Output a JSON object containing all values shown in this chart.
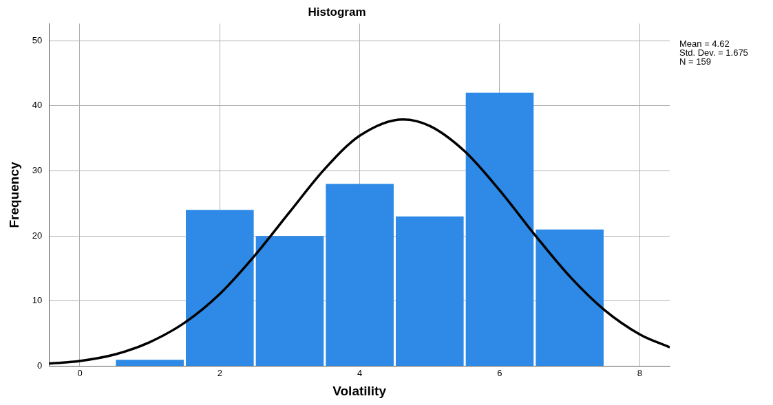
{
  "chart_data": {
    "type": "histogram",
    "title": "Histogram",
    "xlabel": "Volatility",
    "ylabel": "Frequency",
    "bins": [
      0.5,
      1.5,
      2.5,
      3.5,
      4.5,
      5.5,
      6.5,
      7.5
    ],
    "values": [
      1,
      24,
      20,
      28,
      23,
      42,
      21
    ],
    "color": "#2e8ae6",
    "series": [
      {
        "type": "line",
        "color": "#000000",
        "x": [
          -0.44,
          0,
          0.5,
          1,
          1.5,
          2,
          2.5,
          3,
          3.5,
          4,
          4.62,
          5,
          5.5,
          6,
          6.5,
          7,
          7.5,
          8,
          8.43
        ],
        "values": [
          0.4,
          0.8,
          1.8,
          3.7,
          6.7,
          11.1,
          17.0,
          23.7,
          30.3,
          35.4,
          37.9,
          36.9,
          33.0,
          27.0,
          20.2,
          13.8,
          8.6,
          4.9,
          2.9
        ]
      }
    ],
    "xlim": [
      -0.44,
      8.43
    ],
    "xticks": [
      0,
      2,
      4,
      6,
      8
    ],
    "ylim": [
      0,
      52.6
    ],
    "yticks": [
      0,
      10,
      20,
      30,
      40,
      50
    ],
    "grid": true,
    "annotations": [
      "Mean = 4.62",
      "Std. Dev. = 1.675",
      "N = 159"
    ]
  }
}
